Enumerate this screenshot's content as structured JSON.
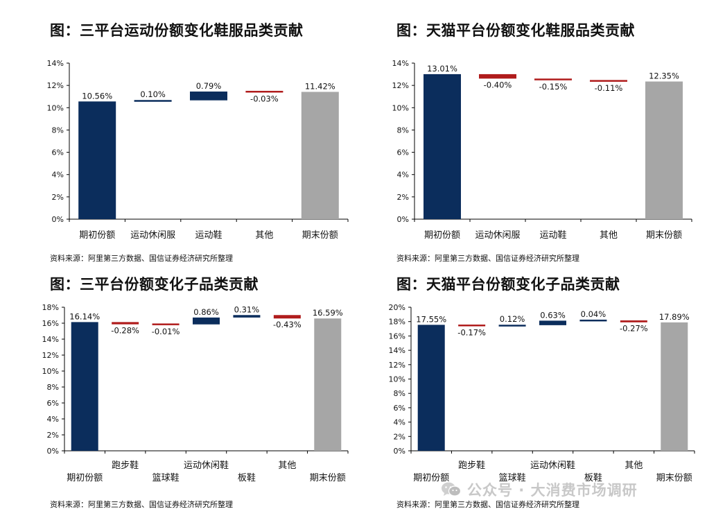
{
  "panels": [
    {
      "title": "图：三平台运动份额变化鞋服品类贡献",
      "source": "资料来源：阿里第三方数据、国信证券经济研究所整理"
    },
    {
      "title": "图：天猫平台份额变化鞋服品类贡献",
      "source": "资料来源：阿里第三方数据、国信证券经济研究所整理"
    },
    {
      "title": "图：三平台份额变化子品类贡献",
      "source": "资料来源：阿里第三方数据、国信证券经济研究所整理"
    },
    {
      "title": "图：天猫平台份额变化子品类贡献",
      "source": "资料来源：阿里第三方数据、国信证券经济研究所整理"
    }
  ],
  "watermark": {
    "text": "公众号 · 大消费市场调研",
    "icon": "wechat-icon"
  },
  "colors": {
    "total": "#0b2d5c",
    "increase": "#0b2d5c",
    "decrease": "#b01c1c",
    "end": "#a6a6a6",
    "axis": "#000000"
  },
  "chart_data": [
    {
      "type": "bar",
      "subtype": "waterfall",
      "title": "图：三平台运动份额变化鞋服品类贡献",
      "categories": [
        "期初份额",
        "运动休闲服",
        "运动鞋",
        "其他",
        "期末份额"
      ],
      "values": [
        10.56,
        0.1,
        0.79,
        -0.03,
        11.42
      ],
      "labels": [
        "10.56%",
        "0.10%",
        "0.79%",
        "-0.03%",
        "11.42%"
      ],
      "kinds": [
        "total",
        "delta",
        "delta",
        "delta",
        "end"
      ],
      "ylim": [
        0,
        14
      ],
      "yticks": [
        0,
        2,
        4,
        6,
        8,
        10,
        12,
        14
      ],
      "ytick_labels": [
        "0%",
        "2%",
        "4%",
        "6%",
        "8%",
        "10%",
        "12%",
        "14%"
      ],
      "xlabel": "",
      "ylabel": "",
      "grid": false
    },
    {
      "type": "bar",
      "subtype": "waterfall",
      "title": "图：天猫平台份额变化鞋服品类贡献",
      "categories": [
        "期初份额",
        "运动休闲服",
        "运动鞋",
        "其他",
        "期末份额"
      ],
      "values": [
        13.01,
        -0.4,
        -0.15,
        -0.11,
        12.35
      ],
      "labels": [
        "13.01%",
        "-0.40%",
        "-0.15%",
        "-0.11%",
        "12.35%"
      ],
      "kinds": [
        "total",
        "delta",
        "delta",
        "delta",
        "end"
      ],
      "ylim": [
        0,
        14
      ],
      "yticks": [
        0,
        2,
        4,
        6,
        8,
        10,
        12,
        14
      ],
      "ytick_labels": [
        "0%",
        "2%",
        "4%",
        "6%",
        "8%",
        "10%",
        "12%",
        "14%"
      ],
      "xlabel": "",
      "ylabel": "",
      "grid": false
    },
    {
      "type": "bar",
      "subtype": "waterfall",
      "title": "图：三平台份额变化子品类贡献",
      "categories": [
        "期初份额",
        "跑步鞋",
        "篮球鞋",
        "运动休闲鞋",
        "板鞋",
        "其他",
        "期末份额"
      ],
      "values": [
        16.14,
        -0.28,
        -0.01,
        0.86,
        0.31,
        -0.43,
        16.59
      ],
      "labels": [
        "16.14%",
        "-0.28%",
        "-0.01%",
        "0.86%",
        "0.31%",
        "-0.43%",
        "16.59%"
      ],
      "kinds": [
        "total",
        "delta",
        "delta",
        "delta",
        "delta",
        "delta",
        "end"
      ],
      "ylim": [
        0,
        18
      ],
      "yticks": [
        0,
        2,
        4,
        6,
        8,
        10,
        12,
        14,
        16,
        18
      ],
      "ytick_labels": [
        "0%",
        "2%",
        "4%",
        "6%",
        "8%",
        "10%",
        "12%",
        "14%",
        "16%",
        "18%"
      ],
      "xlabel": "",
      "ylabel": "",
      "grid": false
    },
    {
      "type": "bar",
      "subtype": "waterfall",
      "title": "图：天猫平台份额变化子品类贡献",
      "categories": [
        "期初份额",
        "跑步鞋",
        "篮球鞋",
        "运动休闲鞋",
        "板鞋",
        "其他",
        "期末份额"
      ],
      "values": [
        17.55,
        -0.17,
        0.12,
        0.63,
        0.04,
        -0.27,
        17.89
      ],
      "labels": [
        "17.55%",
        "-0.17%",
        "0.12%",
        "0.63%",
        "0.04%",
        "-0.27%",
        "17.89%"
      ],
      "kinds": [
        "total",
        "delta",
        "delta",
        "delta",
        "delta",
        "delta",
        "end"
      ],
      "ylim": [
        0,
        20
      ],
      "yticks": [
        0,
        2,
        4,
        6,
        8,
        10,
        12,
        14,
        16,
        18,
        20
      ],
      "ytick_labels": [
        "0%",
        "2%",
        "4%",
        "6%",
        "8%",
        "10%",
        "12%",
        "14%",
        "16%",
        "18%",
        "20%"
      ],
      "xlabel": "",
      "ylabel": "",
      "grid": false
    }
  ]
}
